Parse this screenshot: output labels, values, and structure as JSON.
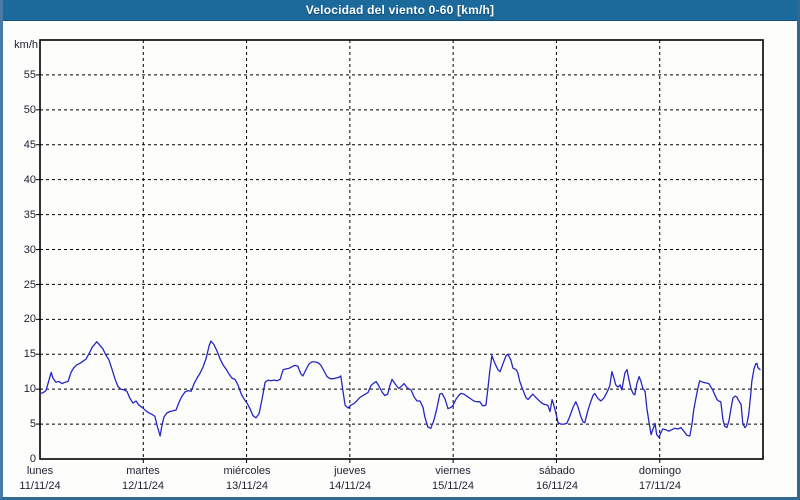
{
  "header": {
    "title": "Velocidad del viento 0-60 [km/h]"
  },
  "colors": {
    "titlebar_bg": "#1c6a9c",
    "frame_border": "#4a7ba7",
    "plot_background": "#fdfefc",
    "plot_border": "#000000",
    "grid": "#000000",
    "line": "#2626c4",
    "axis_text": "#1f1f33",
    "title_text": "#ffffff"
  },
  "chart_data": {
    "type": "line",
    "title": "Velocidad del viento 0-60 [km/h]",
    "ylabel": "km/h",
    "xlabel": "",
    "ylim": [
      0,
      60
    ],
    "x_range_hours": [
      0,
      168
    ],
    "grid": "dashed",
    "legend": "none",
    "y_tick_labels": [
      "55",
      "50",
      "45",
      "40",
      "35",
      "30",
      "25",
      "20",
      "15",
      "10",
      "5",
      "0"
    ],
    "y_tick_values": [
      55,
      50,
      45,
      40,
      35,
      30,
      25,
      20,
      15,
      10,
      5,
      0
    ],
    "x_days": [
      {
        "name": "lunes",
        "date": "11/11/24"
      },
      {
        "name": "martes",
        "date": "12/11/24"
      },
      {
        "name": "miércoles",
        "date": "13/11/24"
      },
      {
        "name": "jueves",
        "date": "14/11/24"
      },
      {
        "name": "viernes",
        "date": "15/11/24"
      },
      {
        "name": "sábado",
        "date": "16/11/24"
      },
      {
        "name": "domingo",
        "date": "17/11/24"
      }
    ],
    "series": [
      {
        "name": "Velocidad del viento [km/h]",
        "color": "#2626c4",
        "points": [
          [
            0.0,
            9.4
          ],
          [
            0.7,
            9.5
          ],
          [
            1.4,
            9.8
          ],
          [
            2.1,
            11.3
          ],
          [
            2.6,
            12.4
          ],
          [
            3.0,
            11.6
          ],
          [
            3.7,
            11.0
          ],
          [
            4.4,
            11.1
          ],
          [
            5.1,
            10.8
          ],
          [
            5.8,
            11.0
          ],
          [
            6.5,
            11.1
          ],
          [
            7.2,
            12.4
          ],
          [
            7.9,
            13.1
          ],
          [
            8.6,
            13.5
          ],
          [
            9.3,
            13.7
          ],
          [
            10.0,
            14.0
          ],
          [
            10.7,
            14.3
          ],
          [
            11.4,
            15.1
          ],
          [
            12.1,
            16.0
          ],
          [
            12.8,
            16.5
          ],
          [
            13.2,
            16.8
          ],
          [
            13.9,
            16.3
          ],
          [
            14.6,
            15.8
          ],
          [
            15.3,
            14.9
          ],
          [
            16.0,
            14.2
          ],
          [
            16.7,
            12.9
          ],
          [
            17.4,
            11.5
          ],
          [
            18.1,
            10.4
          ],
          [
            18.8,
            10.0
          ],
          [
            19.5,
            9.9
          ],
          [
            20.2,
            9.7
          ],
          [
            20.9,
            8.7
          ],
          [
            21.6,
            8.0
          ],
          [
            22.3,
            8.3
          ],
          [
            23.0,
            7.7
          ],
          [
            23.7,
            7.4
          ],
          [
            24.6,
            6.9
          ],
          [
            25.3,
            6.6
          ],
          [
            26.0,
            6.4
          ],
          [
            26.7,
            6.1
          ],
          [
            27.2,
            4.8
          ],
          [
            27.9,
            3.3
          ],
          [
            28.3,
            4.7
          ],
          [
            28.8,
            6.0
          ],
          [
            29.5,
            6.6
          ],
          [
            30.2,
            6.8
          ],
          [
            30.9,
            6.9
          ],
          [
            31.6,
            7.0
          ],
          [
            32.3,
            8.1
          ],
          [
            33.0,
            9.0
          ],
          [
            33.7,
            9.6
          ],
          [
            34.4,
            9.8
          ],
          [
            35.1,
            9.7
          ],
          [
            35.8,
            10.8
          ],
          [
            36.5,
            11.6
          ],
          [
            37.2,
            12.3
          ],
          [
            37.9,
            13.2
          ],
          [
            38.6,
            14.4
          ],
          [
            39.3,
            16.2
          ],
          [
            39.7,
            16.9
          ],
          [
            40.4,
            16.4
          ],
          [
            41.1,
            15.5
          ],
          [
            41.8,
            14.4
          ],
          [
            42.5,
            13.5
          ],
          [
            43.2,
            12.9
          ],
          [
            43.9,
            12.2
          ],
          [
            44.6,
            11.6
          ],
          [
            45.3,
            11.4
          ],
          [
            46.0,
            10.6
          ],
          [
            46.7,
            9.4
          ],
          [
            47.4,
            8.6
          ],
          [
            48.1,
            8.0
          ],
          [
            48.8,
            7.2
          ],
          [
            49.5,
            6.2
          ],
          [
            50.2,
            5.9
          ],
          [
            50.9,
            6.5
          ],
          [
            51.6,
            8.6
          ],
          [
            52.3,
            11.0
          ],
          [
            53.0,
            11.3
          ],
          [
            53.7,
            11.2
          ],
          [
            54.4,
            11.3
          ],
          [
            55.1,
            11.2
          ],
          [
            55.8,
            11.4
          ],
          [
            56.5,
            12.8
          ],
          [
            57.2,
            12.9
          ],
          [
            57.9,
            13.0
          ],
          [
            58.5,
            13.2
          ],
          [
            59.2,
            13.4
          ],
          [
            59.9,
            13.3
          ],
          [
            60.6,
            12.2
          ],
          [
            61.1,
            11.9
          ],
          [
            61.8,
            12.8
          ],
          [
            62.5,
            13.6
          ],
          [
            63.2,
            13.9
          ],
          [
            63.9,
            13.9
          ],
          [
            64.6,
            13.8
          ],
          [
            65.3,
            13.4
          ],
          [
            66.0,
            12.6
          ],
          [
            66.7,
            11.8
          ],
          [
            67.4,
            11.5
          ],
          [
            68.1,
            11.5
          ],
          [
            68.8,
            11.6
          ],
          [
            69.5,
            11.7
          ],
          [
            69.9,
            11.9
          ],
          [
            70.4,
            9.7
          ],
          [
            70.9,
            7.7
          ],
          [
            71.6,
            7.3
          ],
          [
            72.2,
            7.7
          ],
          [
            72.9,
            7.9
          ],
          [
            73.6,
            8.3
          ],
          [
            74.3,
            8.8
          ],
          [
            75.3,
            9.2
          ],
          [
            76.2,
            9.5
          ],
          [
            76.9,
            10.5
          ],
          [
            77.6,
            10.9
          ],
          [
            78.1,
            11.1
          ],
          [
            78.8,
            10.4
          ],
          [
            79.5,
            9.6
          ],
          [
            80.1,
            9.1
          ],
          [
            80.8,
            9.3
          ],
          [
            81.3,
            10.5
          ],
          [
            81.8,
            11.4
          ],
          [
            82.7,
            10.6
          ],
          [
            83.4,
            10.1
          ],
          [
            84.1,
            10.5
          ],
          [
            84.6,
            10.8
          ],
          [
            85.3,
            10.2
          ],
          [
            86.2,
            9.9
          ],
          [
            86.9,
            8.9
          ],
          [
            87.6,
            8.3
          ],
          [
            88.3,
            8.3
          ],
          [
            89.0,
            7.4
          ],
          [
            89.4,
            6.1
          ],
          [
            90.1,
            4.6
          ],
          [
            90.8,
            4.4
          ],
          [
            91.5,
            5.5
          ],
          [
            92.2,
            7.2
          ],
          [
            92.9,
            9.3
          ],
          [
            93.4,
            9.4
          ],
          [
            94.1,
            8.6
          ],
          [
            94.8,
            7.2
          ],
          [
            95.5,
            7.4
          ],
          [
            96.0,
            7.7
          ],
          [
            96.7,
            8.6
          ],
          [
            97.3,
            9.1
          ],
          [
            97.8,
            9.4
          ],
          [
            98.5,
            9.3
          ],
          [
            99.4,
            8.9
          ],
          [
            100.1,
            8.6
          ],
          [
            100.8,
            8.3
          ],
          [
            101.5,
            8.2
          ],
          [
            102.2,
            8.2
          ],
          [
            102.9,
            7.6
          ],
          [
            103.6,
            7.7
          ],
          [
            104.1,
            10.2
          ],
          [
            104.5,
            12.5
          ],
          [
            105.0,
            14.8
          ],
          [
            105.7,
            13.7
          ],
          [
            106.4,
            12.8
          ],
          [
            106.9,
            12.5
          ],
          [
            107.6,
            13.7
          ],
          [
            108.3,
            14.8
          ],
          [
            108.7,
            15.0
          ],
          [
            109.4,
            14.2
          ],
          [
            109.9,
            13.0
          ],
          [
            110.6,
            12.8
          ],
          [
            111.0,
            12.4
          ],
          [
            111.5,
            11.1
          ],
          [
            112.2,
            9.9
          ],
          [
            112.9,
            8.8
          ],
          [
            113.4,
            8.5
          ],
          [
            114.1,
            9.0
          ],
          [
            114.5,
            9.3
          ],
          [
            115.2,
            8.8
          ],
          [
            115.9,
            8.4
          ],
          [
            116.6,
            8.0
          ],
          [
            117.3,
            7.8
          ],
          [
            118.0,
            7.7
          ],
          [
            118.5,
            6.8
          ],
          [
            119.0,
            8.5
          ],
          [
            119.4,
            7.7
          ],
          [
            119.9,
            6.5
          ],
          [
            120.4,
            5.2
          ],
          [
            121.0,
            5.0
          ],
          [
            121.7,
            5.0
          ],
          [
            122.4,
            5.1
          ],
          [
            123.1,
            6.1
          ],
          [
            123.8,
            7.3
          ],
          [
            124.5,
            8.2
          ],
          [
            125.0,
            7.5
          ],
          [
            125.7,
            6.0
          ],
          [
            126.2,
            5.3
          ],
          [
            126.6,
            5.2
          ],
          [
            127.3,
            6.9
          ],
          [
            127.8,
            7.9
          ],
          [
            128.5,
            9.1
          ],
          [
            128.9,
            9.4
          ],
          [
            129.6,
            8.7
          ],
          [
            130.3,
            8.3
          ],
          [
            131.0,
            8.7
          ],
          [
            131.7,
            9.5
          ],
          [
            132.4,
            10.5
          ],
          [
            132.9,
            12.5
          ],
          [
            133.4,
            11.5
          ],
          [
            133.8,
            10.6
          ],
          [
            134.3,
            10.3
          ],
          [
            134.8,
            10.6
          ],
          [
            135.2,
            9.9
          ],
          [
            135.9,
            12.3
          ],
          [
            136.4,
            12.8
          ],
          [
            136.9,
            11.2
          ],
          [
            137.3,
            10.1
          ],
          [
            137.8,
            9.4
          ],
          [
            138.2,
            9.2
          ],
          [
            138.7,
            10.8
          ],
          [
            139.2,
            11.8
          ],
          [
            139.6,
            11.2
          ],
          [
            140.1,
            10.1
          ],
          [
            140.6,
            9.7
          ],
          [
            141.0,
            7.3
          ],
          [
            141.5,
            5.3
          ],
          [
            142.0,
            3.5
          ],
          [
            142.4,
            4.2
          ],
          [
            142.9,
            5.1
          ],
          [
            143.3,
            3.5
          ],
          [
            143.8,
            3.1
          ],
          [
            144.3,
            3.8
          ],
          [
            144.7,
            4.3
          ],
          [
            145.4,
            4.2
          ],
          [
            146.1,
            4.0
          ],
          [
            146.8,
            4.2
          ],
          [
            147.5,
            4.4
          ],
          [
            148.2,
            4.3
          ],
          [
            148.9,
            4.5
          ],
          [
            149.6,
            4.0
          ],
          [
            150.3,
            3.4
          ],
          [
            151.0,
            3.3
          ],
          [
            151.5,
            5.0
          ],
          [
            151.9,
            7.0
          ],
          [
            152.4,
            8.7
          ],
          [
            152.9,
            10.2
          ],
          [
            153.3,
            11.2
          ],
          [
            154.0,
            11.0
          ],
          [
            154.7,
            10.9
          ],
          [
            155.4,
            10.8
          ],
          [
            155.9,
            10.3
          ],
          [
            156.3,
            9.9
          ],
          [
            156.8,
            9.2
          ],
          [
            157.3,
            8.5
          ],
          [
            157.7,
            8.3
          ],
          [
            158.2,
            8.2
          ],
          [
            158.7,
            5.6
          ],
          [
            159.1,
            4.7
          ],
          [
            159.6,
            4.5
          ],
          [
            160.1,
            5.5
          ],
          [
            160.5,
            7.0
          ],
          [
            161.0,
            8.7
          ],
          [
            161.5,
            9.0
          ],
          [
            161.9,
            8.9
          ],
          [
            162.4,
            8.3
          ],
          [
            162.9,
            7.8
          ],
          [
            163.3,
            5.1
          ],
          [
            163.8,
            4.5
          ],
          [
            164.2,
            4.8
          ],
          [
            164.7,
            6.5
          ],
          [
            165.2,
            9.5
          ],
          [
            165.4,
            11.1
          ],
          [
            165.9,
            12.9
          ],
          [
            166.3,
            13.6
          ],
          [
            166.6,
            13.7
          ],
          [
            166.8,
            13.1
          ],
          [
            167.3,
            12.8
          ]
        ]
      }
    ]
  }
}
